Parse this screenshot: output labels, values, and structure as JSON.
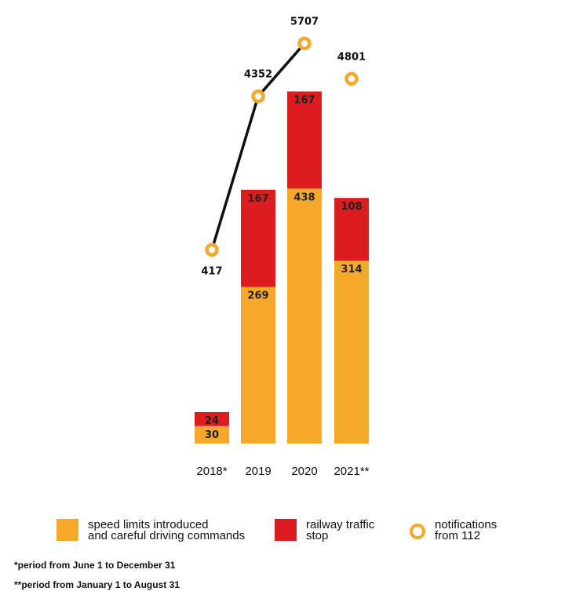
{
  "chart_data": {
    "type": "bar",
    "stacked": true,
    "categories": [
      "2018*",
      "2019",
      "2020",
      "2021**"
    ],
    "series": [
      {
        "name": "speed limits introduced and careful driving commands",
        "color": "#f6a82a",
        "values": [
          30,
          269,
          438,
          314
        ]
      },
      {
        "name": "railway traffic stop",
        "color": "#dc1c1e",
        "values": [
          24,
          167,
          167,
          108
        ]
      }
    ],
    "line_series": {
      "name": "notifications from 112",
      "color": "#f6a82a",
      "line_color": "#111111",
      "values": [
        417,
        4352,
        5707,
        4801
      ],
      "connected_through": 2
    },
    "grid": false,
    "legend_position": "bottom"
  },
  "legend": {
    "speed": "speed limits introduced\nand careful driving commands",
    "railway": "railway traffic\nstop",
    "notifications": "notifications\nfrom 112"
  },
  "notes": {
    "n1": "*period from June 1 to December 31",
    "n2": "**period from January 1 to August 31"
  }
}
